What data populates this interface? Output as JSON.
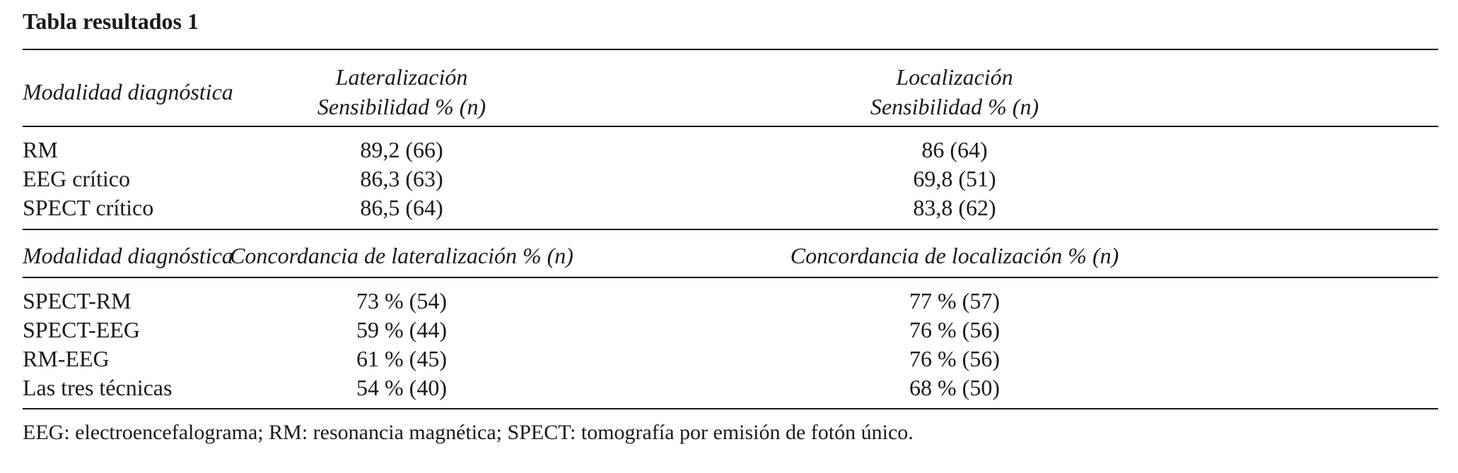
{
  "title": "Tabla resultados 1",
  "section1": {
    "header": {
      "modality": "Modalidad diagnóstica",
      "lateralization_line1": "Lateralización",
      "lateralization_line2": "Sensibilidad % (n)",
      "localization_line1": "Localización",
      "localization_line2": "Sensibilidad % (n)"
    },
    "rows": [
      {
        "modality": "RM",
        "lateralization": "89,2 (66)",
        "localization": "86 (64)"
      },
      {
        "modality": "EEG crítico",
        "lateralization": "86,3 (63)",
        "localization": "69,8 (51)"
      },
      {
        "modality": "SPECT crítico",
        "lateralization": "86,5 (64)",
        "localization": "83,8 (62)"
      }
    ]
  },
  "section2": {
    "header": {
      "modality": "Modalidad diagnóstica",
      "lateralization": "Concordancia de lateralización % (n)",
      "localization": "Concordancia de localización % (n)"
    },
    "rows": [
      {
        "modality": "SPECT-RM",
        "lateralization": "73 % (54)",
        "localization": "77 % (57)"
      },
      {
        "modality": "SPECT-EEG",
        "lateralization": "59 % (44)",
        "localization": "76 % (56)"
      },
      {
        "modality": "RM-EEG",
        "lateralization": "61 % (45)",
        "localization": "76 % (56)"
      },
      {
        "modality": "Las tres técnicas",
        "lateralization": "54 % (40)",
        "localization": "68 % (50)"
      }
    ]
  },
  "footnote": "EEG: electroencefalograma; RM: resonancia magnética; SPECT: tomografía por emisión de fotón único."
}
